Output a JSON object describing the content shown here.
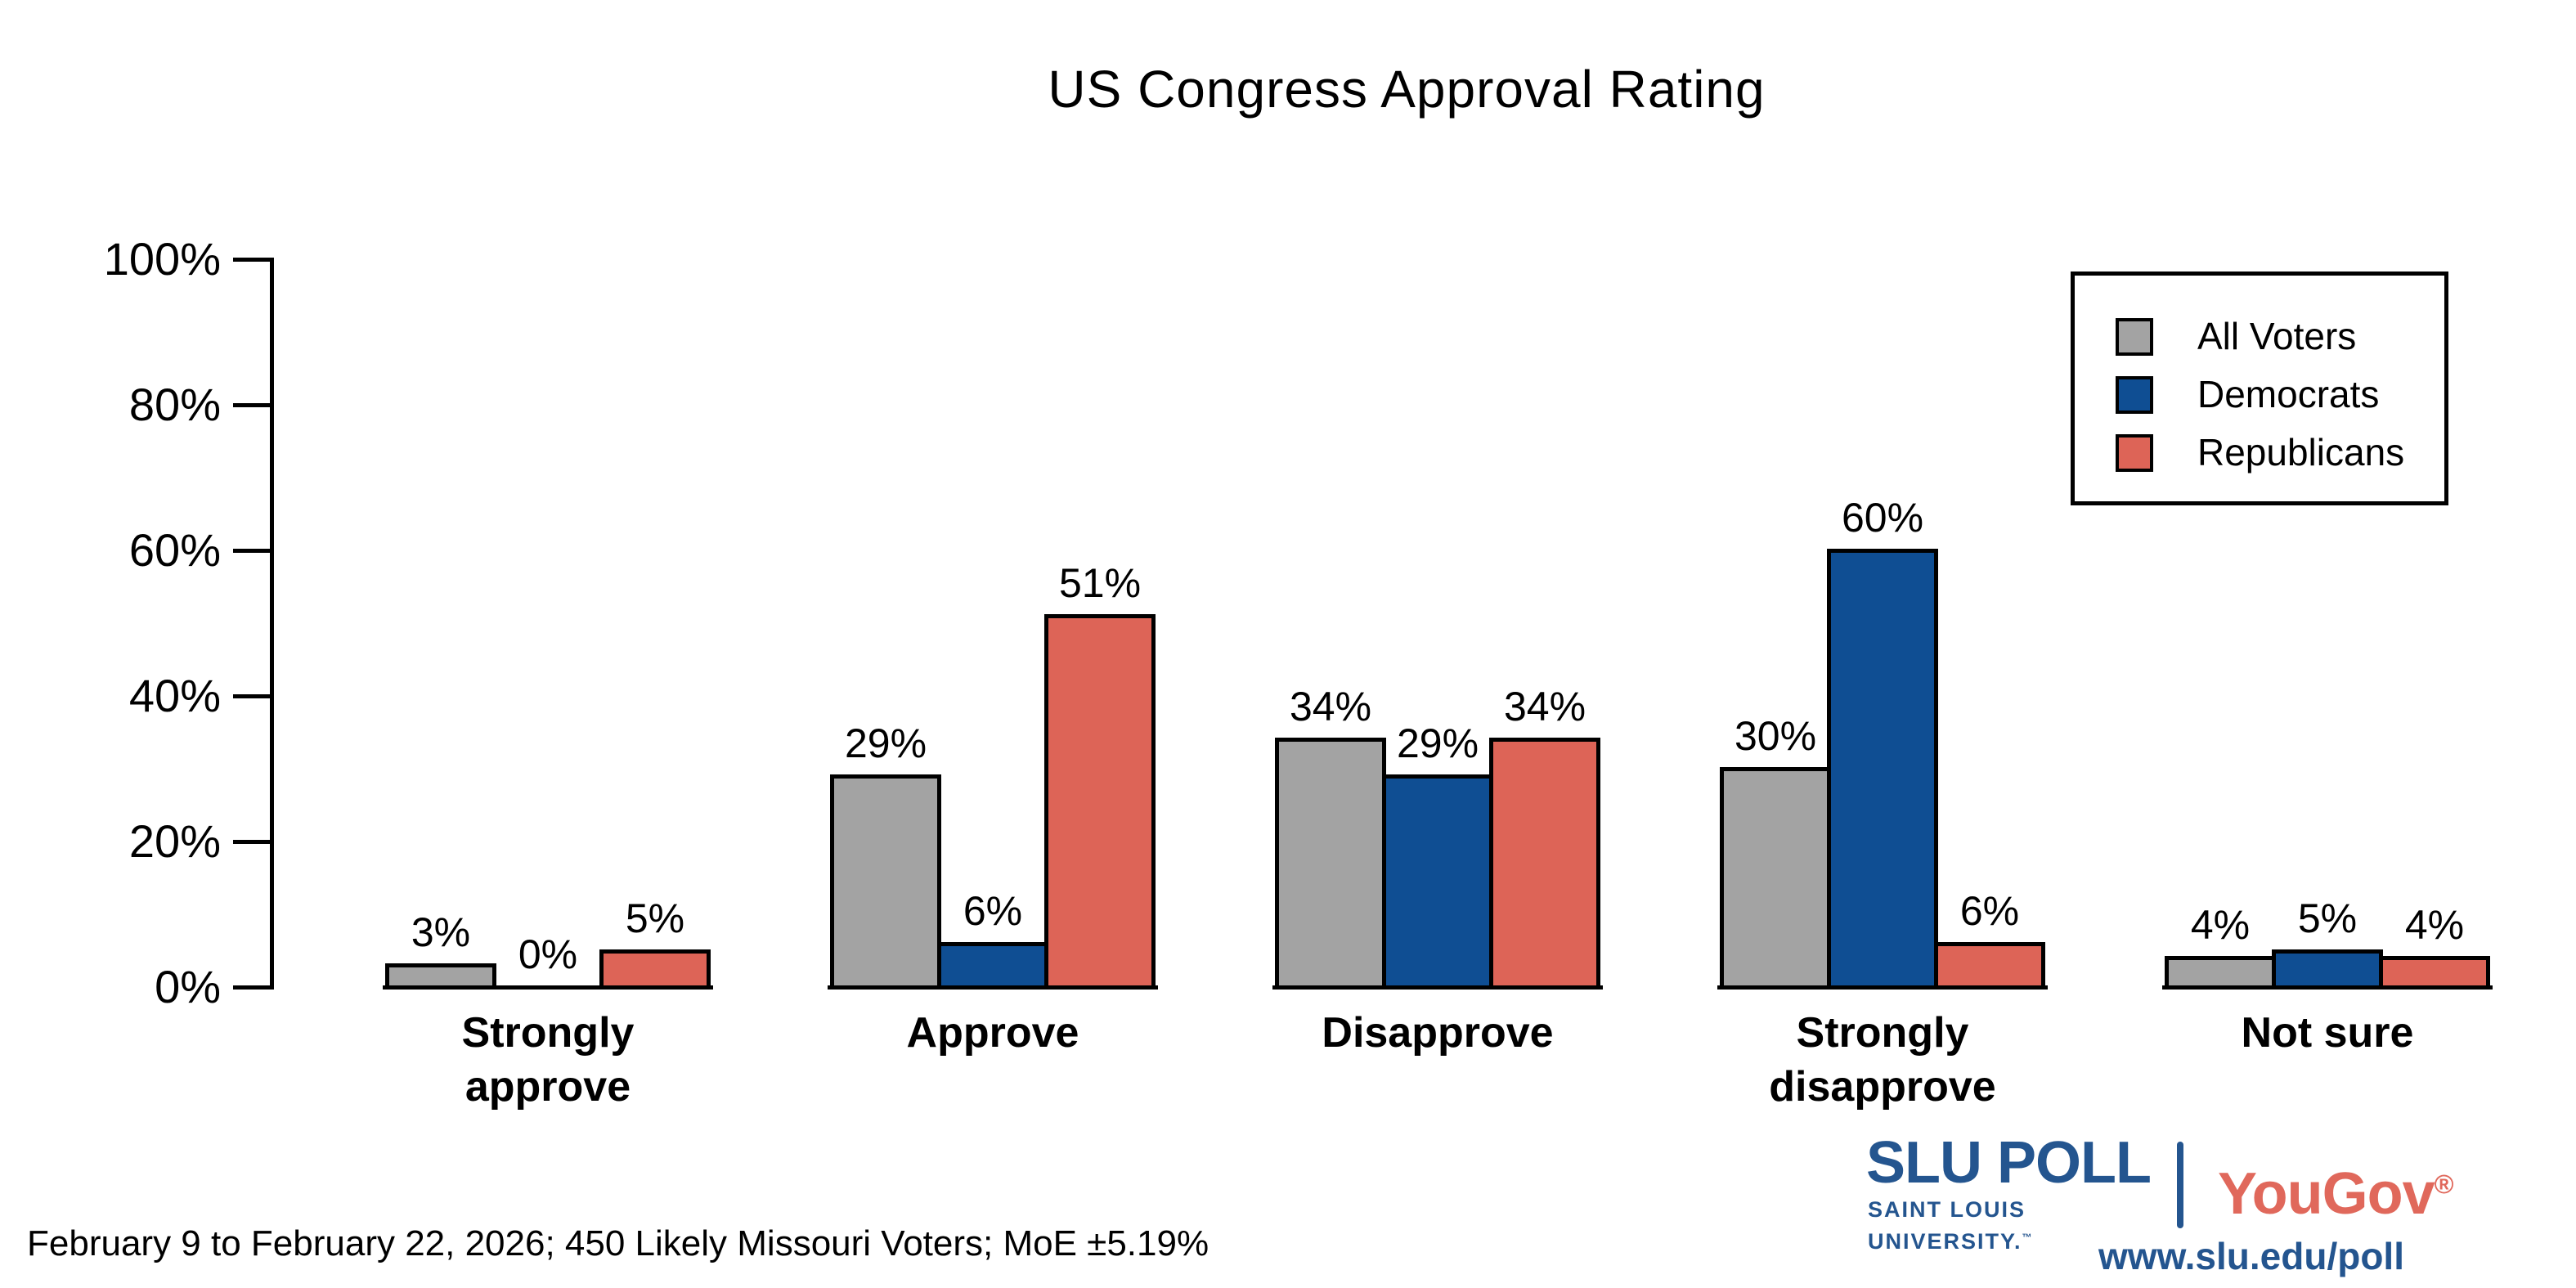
{
  "title": "US Congress Approval Rating",
  "footer": "February 9 to February 22, 2026; 450 Likely Missouri Voters; MoE ±5.19%",
  "legend": {
    "items": [
      {
        "label": "All Voters",
        "color": "#a3a3a3"
      },
      {
        "label": "Democrats",
        "color": "#0f4e93"
      },
      {
        "label": "Republicans",
        "color": "#dd6457"
      }
    ]
  },
  "chart_data": {
    "type": "bar",
    "title": "US Congress Approval Rating",
    "categories": [
      {
        "label": "Strongly approve",
        "lines": [
          "Strongly",
          "approve"
        ]
      },
      {
        "label": "Approve",
        "lines": [
          "Approve"
        ]
      },
      {
        "label": "Disapprove",
        "lines": [
          "Disapprove"
        ]
      },
      {
        "label": "Strongly disapprove",
        "lines": [
          "Strongly",
          "disapprove"
        ]
      },
      {
        "label": "Not sure",
        "lines": [
          "Not sure"
        ]
      }
    ],
    "series": [
      {
        "name": "All Voters",
        "color": "#a3a3a3",
        "values": [
          3,
          29,
          34,
          30,
          4
        ]
      },
      {
        "name": "Democrats",
        "color": "#0f4e93",
        "values": [
          0,
          6,
          29,
          60,
          5
        ]
      },
      {
        "name": "Republicans",
        "color": "#dd6457",
        "values": [
          5,
          51,
          34,
          6,
          4
        ]
      }
    ],
    "value_suffix": "%",
    "ylim": [
      0,
      100
    ],
    "yticks": [
      0,
      20,
      40,
      60,
      80,
      100
    ],
    "ytick_labels": [
      "0%",
      "20%",
      "40%",
      "60%",
      "80%",
      "100%"
    ],
    "grid": false,
    "legend_position": "top-right"
  },
  "branding": {
    "slu_poll": "SLU POLL",
    "slu_sub": "SAINT LOUIS UNIVERSITY.",
    "slu_tm": "™",
    "yougov": "YouGov",
    "yougov_reg": "®",
    "url": "www.slu.edu/poll",
    "slu_blue": "#24558f",
    "yougov_red": "#e0685b"
  }
}
